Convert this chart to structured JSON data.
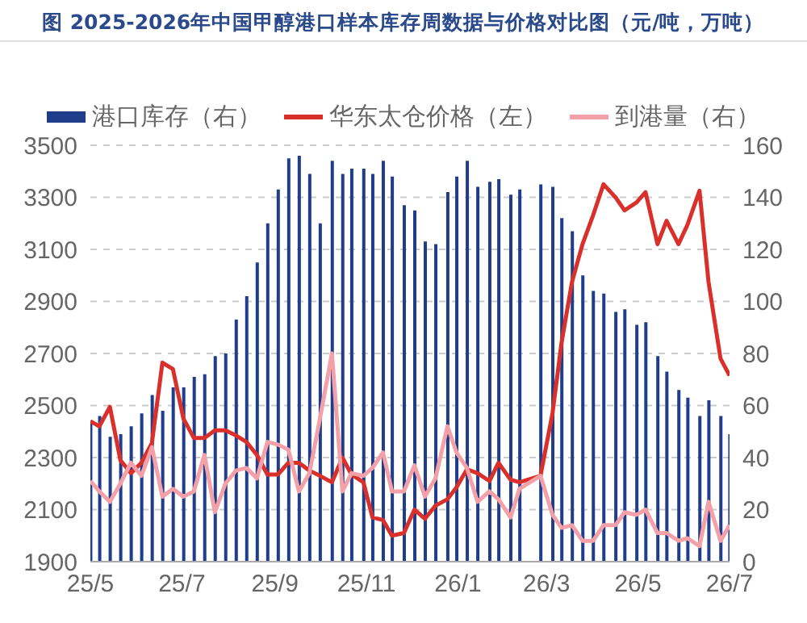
{
  "chart_data": {
    "type": "bar",
    "title": "图  2025-2026年中国甲醇港口样本库存周数据与价格对比图（元/吨，万吨）",
    "x": [
      "2025-05-01",
      "2025-05-07",
      "2025-05-14",
      "2025-05-21",
      "2025-05-28",
      "2025-06-04",
      "2025-06-11",
      "2025-06-18",
      "2025-06-25",
      "2025-07-02",
      "2025-07-09",
      "2025-07-16",
      "2025-07-23",
      "2025-07-30",
      "2025-08-06",
      "2025-08-13",
      "2025-08-20",
      "2025-08-27",
      "2025-09-03",
      "2025-09-10",
      "2025-09-17",
      "2025-09-24",
      "2025-10-01",
      "2025-10-09",
      "2025-10-16",
      "2025-10-22",
      "2025-10-30",
      "2025-11-05",
      "2025-11-12",
      "2025-11-18",
      "2025-11-26",
      "2025-12-03",
      "2025-12-10",
      "2025-12-17",
      "2025-12-25",
      "2025-12-31",
      "2026-01-07",
      "2026-01-14",
      "2026-01-22",
      "2026-01-28",
      "2026-02-05",
      "2026-02-11",
      "2026-02-25",
      "2026-03-05",
      "2026-03-11",
      "2026-03-18",
      "2026-03-25",
      "2026-04-01",
      "2026-04-08",
      "2026-04-16",
      "2026-04-22",
      "2026-04-30",
      "2026-05-06",
      "2026-05-14",
      "2026-05-20",
      "2026-05-28",
      "2026-06-03",
      "2026-06-11",
      "2026-06-17",
      "2026-06-25",
      "2026-07-01"
    ],
    "series": [
      {
        "name": "港口库存（右）",
        "axis": "y2",
        "color": "#1f3d8a",
        "values": [
          54,
          56,
          48,
          49,
          52,
          57,
          64,
          58,
          67,
          67,
          71,
          72,
          79,
          80,
          93,
          102,
          115,
          130,
          143,
          155,
          156,
          149,
          130,
          154,
          149,
          151,
          151,
          149,
          154,
          148,
          137,
          135,
          123,
          122,
          142,
          148,
          154,
          144,
          146,
          147,
          141,
          143,
          145,
          144,
          132,
          127,
          110,
          104,
          103,
          96,
          97,
          91,
          92,
          79,
          73,
          66,
          63,
          56,
          62,
          56,
          49
        ]
      },
      {
        "name": "华东太仓价格（左）",
        "type": "line",
        "color": "#d9302c",
        "values": [
          2440,
          2420,
          2495,
          2290,
          2240,
          2280,
          2355,
          2665,
          2640,
          2450,
          2375,
          2375,
          2405,
          2405,
          2385,
          2360,
          2310,
          2235,
          2235,
          2280,
          2280,
          2250,
          2230,
          2205,
          2300,
          2235,
          2205,
          2070,
          2060,
          2000,
          2010,
          2100,
          2065,
          2115,
          2140,
          2185,
          2255,
          2240,
          2210,
          2280,
          2215,
          2205,
          2230,
          2470,
          2740,
          2975,
          3120,
          3230,
          3350,
          3300,
          3250,
          3280,
          3320,
          3120,
          3210,
          3120,
          3195,
          3325,
          2975,
          2680,
          2615
        ]
      },
      {
        "name": "到港量（右）",
        "type": "line",
        "axis": "y2",
        "color": "#f4a0a8",
        "values": [
          31,
          27,
          23,
          30,
          38,
          33,
          44,
          25,
          28,
          25,
          27,
          41,
          19,
          30,
          35,
          36,
          32,
          46,
          45,
          43,
          27,
          34,
          55,
          80,
          27,
          34,
          33,
          36,
          42,
          27,
          27,
          37,
          25,
          32,
          52,
          42,
          36,
          23,
          27,
          24,
          17,
          28,
          33,
          18,
          13,
          14,
          8,
          8,
          14,
          14,
          19,
          18,
          20,
          11,
          11,
          8,
          9,
          6,
          23,
          8,
          14
        ]
      }
    ],
    "xlim": [
      "2025-05-01",
      "2026-07-01"
    ],
    "xticks": [
      {
        "value": "2025-05-01",
        "label": "25/5"
      },
      {
        "value": "2025-07-01",
        "label": "25/7"
      },
      {
        "value": "2025-09-01",
        "label": "25/9"
      },
      {
        "value": "2025-11-01",
        "label": "25/11"
      },
      {
        "value": "2026-01-01",
        "label": "26/1"
      },
      {
        "value": "2026-03-01",
        "label": "26/3"
      },
      {
        "value": "2026-05-01",
        "label": "26/5"
      },
      {
        "value": "2026-07-01",
        "label": "26/7"
      }
    ],
    "ylim": [
      1900,
      3500
    ],
    "yticks": [
      1900,
      2100,
      2300,
      2500,
      2700,
      2900,
      3100,
      3300,
      3500
    ],
    "y2lim": [
      0,
      160
    ],
    "y2ticks": [
      0,
      20,
      40,
      60,
      80,
      100,
      120,
      140,
      160
    ],
    "grid": "y",
    "legend": "top",
    "marker": "none",
    "line_style": "solid"
  }
}
